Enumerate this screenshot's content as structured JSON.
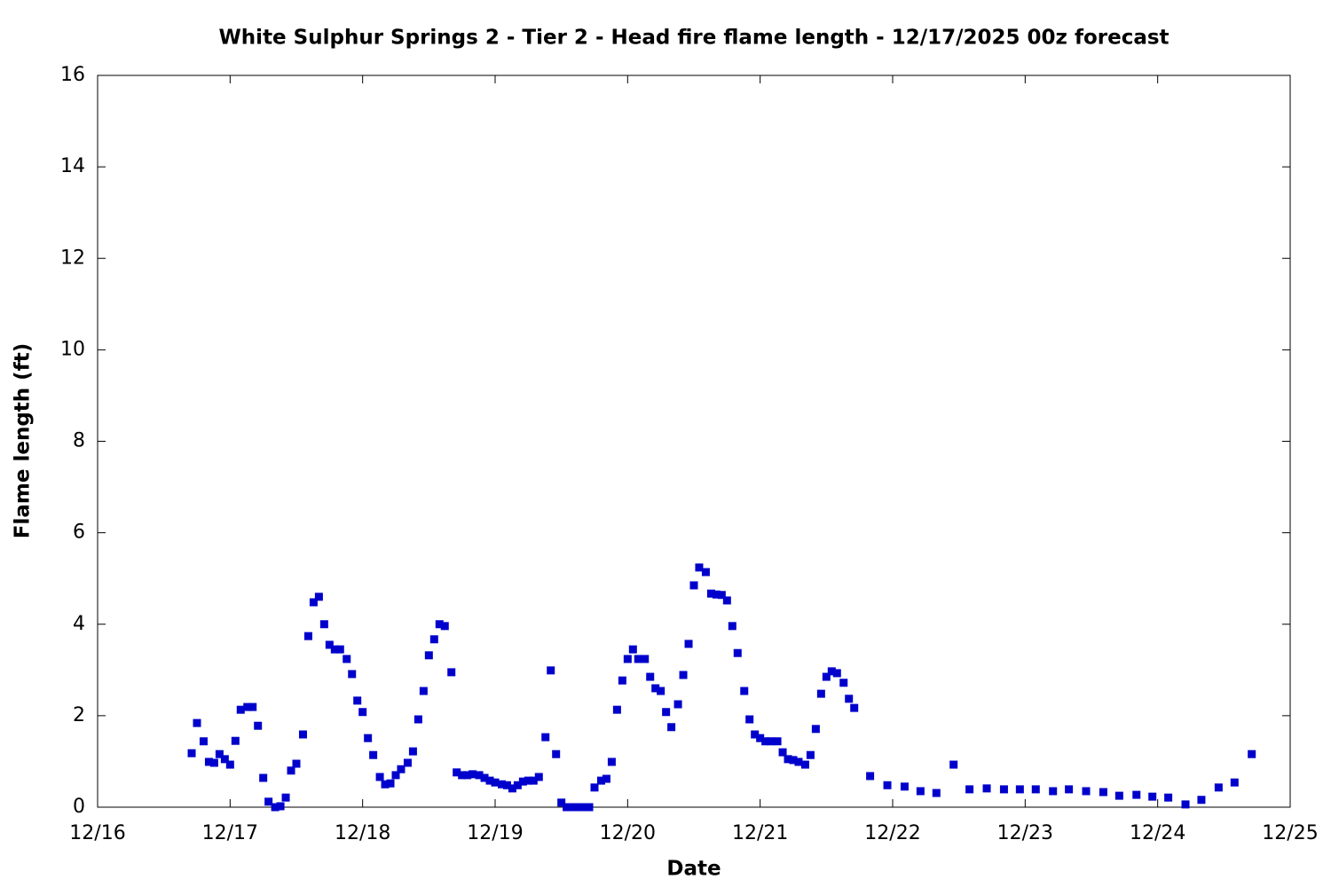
{
  "chart_data": {
    "type": "scatter",
    "title": "White Sulphur Springs 2 - Tier 2 - Head fire flame length - 12/17/2025 00z forecast",
    "xlabel": "Date",
    "ylabel": "Flame length (ft)",
    "color": "#0000cc",
    "xlim": [
      0,
      9
    ],
    "ylim": [
      0,
      16
    ],
    "xticks": [
      {
        "value": 0,
        "label": "12/16"
      },
      {
        "value": 1,
        "label": "12/17"
      },
      {
        "value": 2,
        "label": "12/18"
      },
      {
        "value": 3,
        "label": "12/19"
      },
      {
        "value": 4,
        "label": "12/20"
      },
      {
        "value": 5,
        "label": "12/21"
      },
      {
        "value": 6,
        "label": "12/22"
      },
      {
        "value": 7,
        "label": "12/23"
      },
      {
        "value": 8,
        "label": "12/24"
      },
      {
        "value": 9,
        "label": "12/25"
      }
    ],
    "yticks": [
      0,
      2,
      4,
      6,
      8,
      10,
      12,
      14,
      16
    ],
    "x": [
      0.71,
      0.75,
      0.8,
      0.84,
      0.88,
      0.92,
      0.96,
      1.0,
      1.04,
      1.08,
      1.13,
      1.17,
      1.21,
      1.25,
      1.29,
      1.34,
      1.38,
      1.42,
      1.46,
      1.5,
      1.55,
      1.59,
      1.63,
      1.67,
      1.71,
      1.75,
      1.79,
      1.83,
      1.88,
      1.92,
      1.96,
      2.0,
      2.04,
      2.08,
      2.13,
      2.17,
      2.21,
      2.25,
      2.29,
      2.34,
      2.38,
      2.42,
      2.46,
      2.5,
      2.54,
      2.58,
      2.62,
      2.67,
      2.71,
      2.75,
      2.79,
      2.83,
      2.88,
      2.92,
      2.96,
      3.0,
      3.05,
      3.09,
      3.13,
      3.17,
      3.21,
      3.25,
      3.29,
      3.33,
      3.38,
      3.42,
      3.46,
      3.5,
      3.54,
      3.58,
      3.63,
      3.67,
      3.71,
      3.75,
      3.8,
      3.84,
      3.88,
      3.92,
      3.96,
      4.0,
      4.04,
      4.08,
      4.13,
      4.17,
      4.21,
      4.25,
      4.29,
      4.33,
      4.38,
      4.42,
      4.46,
      4.5,
      4.54,
      4.59,
      4.63,
      4.67,
      4.71,
      4.75,
      4.79,
      4.83,
      4.88,
      4.92,
      4.96,
      5.0,
      5.04,
      5.08,
      5.13,
      5.17,
      5.21,
      5.25,
      5.29,
      5.34,
      5.38,
      5.42,
      5.46,
      5.5,
      5.54,
      5.58,
      5.63,
      5.67,
      5.71,
      5.83,
      5.96,
      6.09,
      6.21,
      6.33,
      6.46,
      6.58,
      6.71,
      6.84,
      6.96,
      7.08,
      7.21,
      7.33,
      7.46,
      7.59,
      7.71,
      7.84,
      7.96,
      8.08,
      8.21,
      8.33,
      8.46,
      8.58,
      8.71
    ],
    "values": [
      1.18,
      1.84,
      1.44,
      0.99,
      0.97,
      1.16,
      1.05,
      0.93,
      1.45,
      2.13,
      2.19,
      2.19,
      1.78,
      0.64,
      0.12,
      0,
      0.02,
      0.21,
      0.8,
      0.95,
      1.59,
      3.74,
      4.48,
      4.6,
      4.0,
      3.55,
      3.45,
      3.45,
      3.24,
      2.91,
      2.33,
      2.08,
      1.51,
      1.14,
      0.66,
      0.5,
      0.52,
      0.7,
      0.83,
      0.97,
      1.22,
      1.92,
      2.54,
      3.32,
      3.67,
      4.0,
      3.96,
      2.95,
      0.76,
      0.7,
      0.7,
      0.72,
      0.7,
      0.64,
      0.58,
      0.54,
      0.5,
      0.48,
      0.41,
      0.48,
      0.56,
      0.58,
      0.58,
      0.66,
      1.53,
      2.99,
      1.16,
      0.1,
      0,
      0,
      0,
      0,
      0,
      0.43,
      0.58,
      0.62,
      0.99,
      2.13,
      2.77,
      3.24,
      3.45,
      3.24,
      3.24,
      2.85,
      2.6,
      2.54,
      2.08,
      1.75,
      2.25,
      2.89,
      3.57,
      4.85,
      5.24,
      5.14,
      4.67,
      4.65,
      4.64,
      4.52,
      3.96,
      3.37,
      2.54,
      1.92,
      1.59,
      1.51,
      1.44,
      1.44,
      1.44,
      1.2,
      1.05,
      1.03,
      0.99,
      0.93,
      1.14,
      1.71,
      2.48,
      2.85,
      2.97,
      2.93,
      2.72,
      2.37,
      2.17,
      0.68,
      0.48,
      0.45,
      0.35,
      0.31,
      0.93,
      0.39,
      0.41,
      0.39,
      0.39,
      0.39,
      0.35,
      0.39,
      0.35,
      0.33,
      0.25,
      0.27,
      0.23,
      0.21,
      0.06,
      0.16,
      0.43,
      0.54,
      1.16
    ]
  }
}
